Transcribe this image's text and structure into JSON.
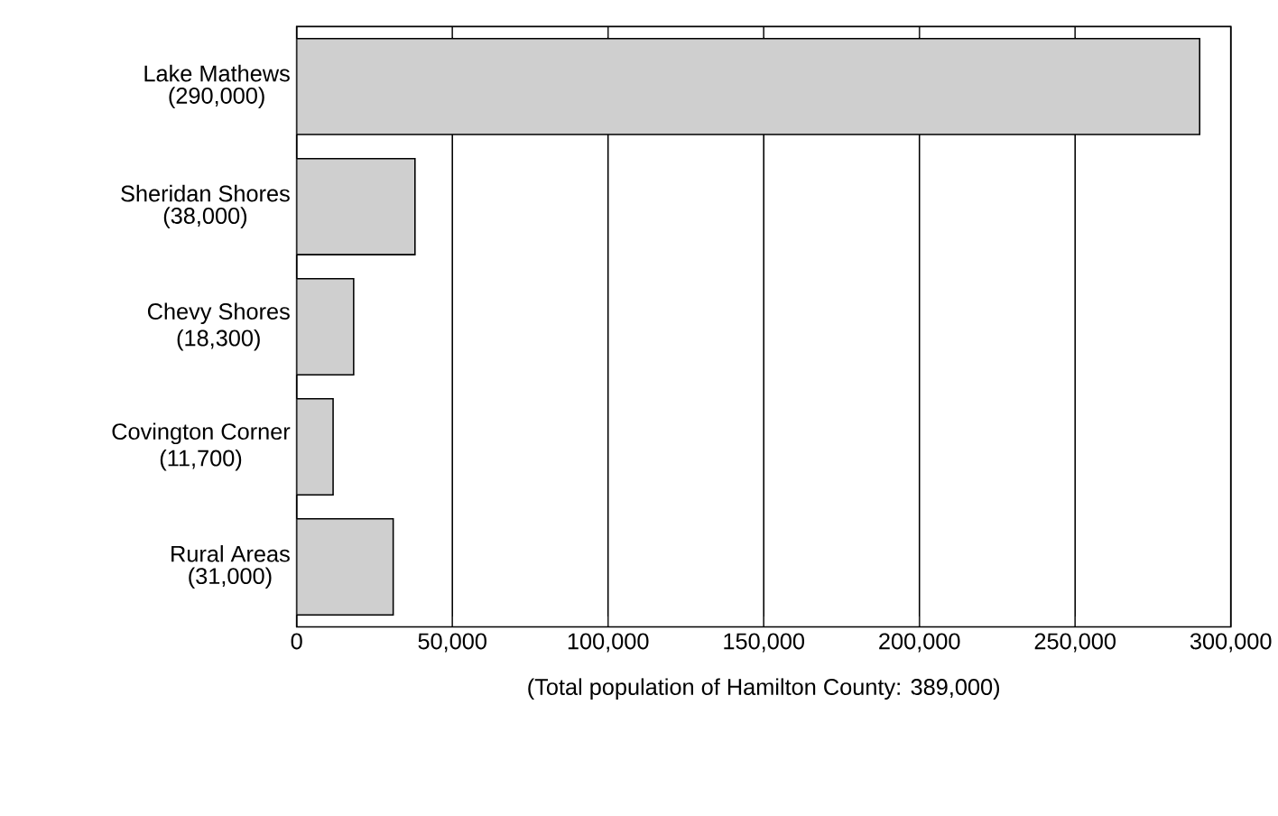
{
  "chart_data": {
    "type": "bar",
    "orientation": "horizontal",
    "categories": [
      "Lake Mathews",
      "Sheridan Shores",
      "Chevy Shores",
      "Covington Corner",
      "Rural Areas"
    ],
    "values": [
      290000,
      38000,
      18300,
      11700,
      31000
    ],
    "value_labels": [
      "(290,000)",
      "(38,000)",
      "(18,300)",
      "(11,700)",
      "(31,000)"
    ],
    "color": "#cfcfcf",
    "xlabel": "(Total population of Hamilton County: 389,000)",
    "xlim": [
      0,
      300000
    ],
    "xticks": [
      0,
      {
        "value": 50000,
        "label": "50,000"
      },
      {
        "value": 100000,
        "label": "100,000"
      },
      {
        "value": 150000,
        "label": "150,000"
      },
      {
        "value": 200000,
        "label": "200,000"
      },
      {
        "value": 250000,
        "label": "250,000"
      },
      {
        "value": 300000,
        "label": "300,000"
      }
    ],
    "grid": "x"
  }
}
